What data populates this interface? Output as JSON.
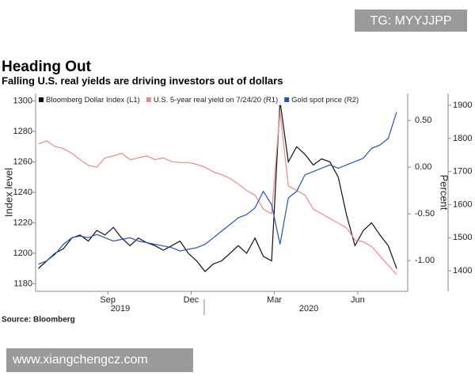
{
  "chart_data": {
    "type": "line",
    "title": "Heading Out",
    "subtitle": "Falling U.S. real yields are driving investors out of dollars",
    "source": "Source: Bloomberg",
    "ylabel": "Index level",
    "y2label": "Percent",
    "year_labels": [
      "2019",
      "2020"
    ],
    "x": [
      0,
      0.3,
      0.6,
      0.9,
      1.2,
      1.5,
      1.8,
      2.1,
      2.4,
      2.7,
      3.0,
      3.3,
      3.6,
      3.9,
      4.2,
      4.5,
      4.8,
      5.1,
      5.4,
      5.7,
      6.0,
      6.3,
      6.6,
      6.9,
      7.2,
      7.5,
      7.8,
      8.1,
      8.4,
      8.7,
      9.0,
      9.3,
      9.6,
      9.9,
      10.2,
      10.5,
      10.8,
      11.1,
      11.4,
      11.7,
      12.0,
      12.3,
      12.6,
      12.9
    ],
    "xlim": [
      -0.1,
      13.3
    ],
    "xticks": [
      {
        "value": 2.5,
        "label": "Sep"
      },
      {
        "value": 5.5,
        "label": "Dec"
      },
      {
        "value": 8.5,
        "label": "Mar"
      },
      {
        "value": 11.5,
        "label": "Jun"
      }
    ],
    "ylim": [
      1175,
      1305
    ],
    "yticks": [
      1180,
      1200,
      1220,
      1240,
      1260,
      1280,
      1300
    ],
    "y2lim": [
      -1.33,
      0.79
    ],
    "y2ticks": [
      {
        "value": 0.5,
        "label": "0.50"
      },
      {
        "value": 0,
        "label": "0.00"
      },
      {
        "value": -0.5,
        "label": "-0.50"
      },
      {
        "value": -1,
        "label": "-1.00"
      }
    ],
    "y3lim": [
      1338,
      1936
    ],
    "y3ticks": [
      1400,
      1500,
      1600,
      1700,
      1800,
      1900
    ],
    "legend": "top-left",
    "series": [
      {
        "name": "Bloomberg Dollar Index (L1)",
        "color": "#111111",
        "axis": "y",
        "values": [
          1190,
          1195,
          1200,
          1203,
          1210,
          1212,
          1208,
          1215,
          1212,
          1217,
          1210,
          1205,
          1210,
          1207,
          1205,
          1202,
          1205,
          1208,
          1200,
          1195,
          1188,
          1193,
          1195,
          1200,
          1205,
          1200,
          1210,
          1198,
          1195,
          1300,
          1260,
          1270,
          1265,
          1258,
          1262,
          1260,
          1250,
          1225,
          1205,
          1215,
          1220,
          1212,
          1205,
          1190
        ]
      },
      {
        "name": "U.S. 5-year real yield on 7/24/20 (R1)",
        "color": "#e88a8a",
        "axis": "y2",
        "values": [
          0.25,
          0.28,
          0.22,
          0.2,
          0.15,
          0.08,
          0.02,
          0,
          0.1,
          0.12,
          0.15,
          0.08,
          0.1,
          0.12,
          0.08,
          0.1,
          0.06,
          0.05,
          0.05,
          0.03,
          0,
          -0.05,
          -0.08,
          -0.12,
          -0.18,
          -0.25,
          -0.3,
          -0.45,
          -0.5,
          0.6,
          -0.2,
          -0.25,
          -0.3,
          -0.45,
          -0.5,
          -0.55,
          -0.6,
          -0.65,
          -0.78,
          -0.8,
          -0.85,
          -0.95,
          -1.05,
          -1.15
        ]
      },
      {
        "name": "Gold spot price (R2)",
        "color": "#2255bb",
        "axis": "y3",
        "values": [
          1420,
          1430,
          1450,
          1480,
          1500,
          1505,
          1500,
          1510,
          1500,
          1490,
          1495,
          1500,
          1490,
          1485,
          1480,
          1475,
          1470,
          1460,
          1465,
          1470,
          1480,
          1500,
          1520,
          1540,
          1560,
          1570,
          1590,
          1640,
          1600,
          1480,
          1620,
          1640,
          1690,
          1700,
          1710,
          1720,
          1710,
          1720,
          1730,
          1740,
          1770,
          1780,
          1800,
          1880
        ]
      }
    ]
  },
  "watermark_top": "TG: MYYJJPP",
  "watermark_bottom": "www.xiangchengcz.com"
}
